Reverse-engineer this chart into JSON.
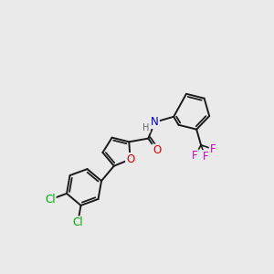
{
  "bg_color": "#eaeaea",
  "bond_color": "#1a1a1a",
  "bond_width": 1.4,
  "atom_colors": {
    "O": "#dd0000",
    "N": "#0000cc",
    "Cl": "#00aa00",
    "F": "#cc00cc",
    "H": "#666666",
    "C": "#1a1a1a"
  },
  "font_size_atom": 8.5
}
